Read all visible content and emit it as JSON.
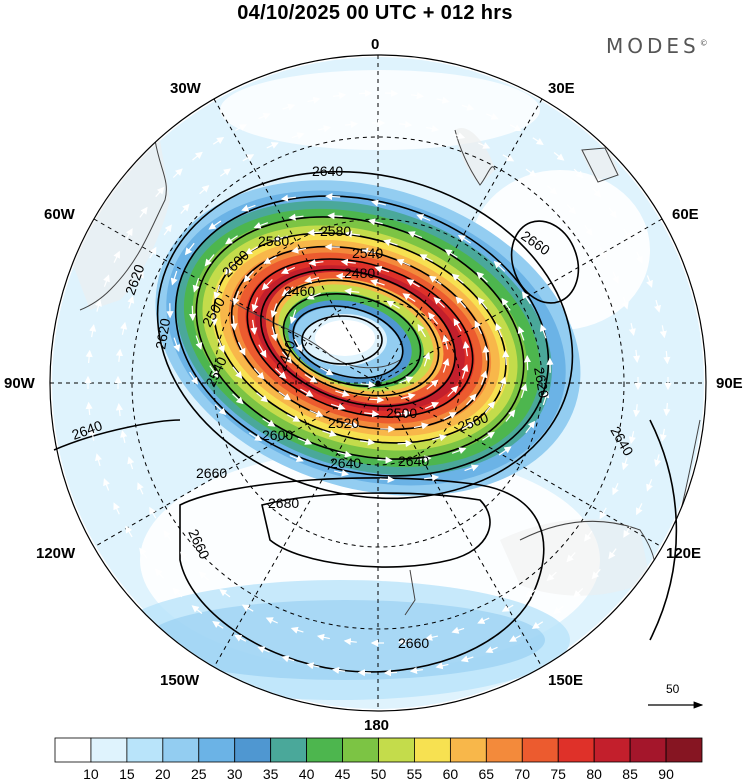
{
  "title": "04/10/2025  00 UTC  + 012 hrs",
  "brand": {
    "name": "MODES",
    "mark": "©"
  },
  "longitudes": {
    "n0": "0",
    "n30e": "30E",
    "n60e": "60E",
    "n90e": "90E",
    "n120e": "120E",
    "n150e": "150E",
    "n180": "180",
    "n150w": "150W",
    "n120w": "120W",
    "n90w": "90W",
    "n60w": "60W",
    "n30w": "30W"
  },
  "contour_labels": {
    "c1": "2640",
    "c2": "2660",
    "c3": "2620",
    "c4": "2580",
    "c5": "2580",
    "c6": "2540",
    "c7": "2480",
    "c8": "2460",
    "c9": "2500",
    "c10": "2440",
    "c11": "2620",
    "c12": "2540",
    "c13": "2640",
    "c14": "2660",
    "c15": "2680",
    "c16": "2660",
    "c17": "2660",
    "c18": "2600",
    "c19": "2520",
    "c20": "2500",
    "c21": "2560",
    "c22": "2640",
    "c23": "2640",
    "c24": "2620",
    "c25": "2600",
    "c26": "2640"
  },
  "vector_scale": {
    "value": "50"
  },
  "colorbar": {
    "labels": [
      "10",
      "15",
      "20",
      "25",
      "30",
      "35",
      "40",
      "45",
      "50",
      "55",
      "60",
      "65",
      "70",
      "75",
      "80",
      "85",
      "90"
    ],
    "colors": [
      "#ffffff",
      "#dff3fd",
      "#b9e4fa",
      "#93cdf1",
      "#6bb3e6",
      "#4f97d1",
      "#4aa89a",
      "#4db64e",
      "#7cc444",
      "#c4dc4b",
      "#f7e151",
      "#f8b74a",
      "#f38a3b",
      "#ec5b2f",
      "#df3129",
      "#c31f2c",
      "#a4162b",
      "#861522"
    ]
  }
}
